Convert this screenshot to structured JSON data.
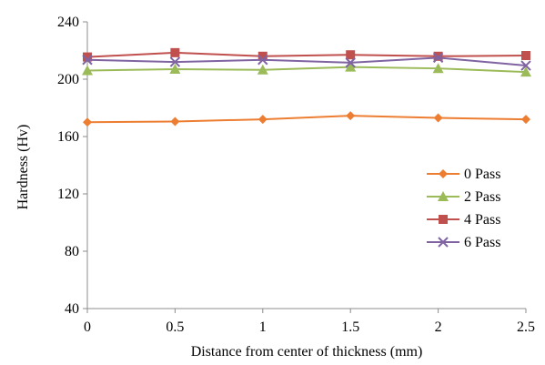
{
  "chart_data": {
    "type": "line",
    "xlabel": "Distance from center of thickness (mm)",
    "ylabel": "Hardness (Hv)",
    "x": [
      0,
      0.5,
      1,
      1.5,
      2,
      2.5
    ],
    "x_tick_labels": [
      "0",
      "0.5",
      "1",
      "1.5",
      "2",
      "2.5"
    ],
    "xlim": [
      0,
      2.5
    ],
    "ylim": [
      40,
      240
    ],
    "y_ticks": [
      40,
      80,
      120,
      160,
      200,
      240
    ],
    "y_tick_labels": [
      "40",
      "80",
      "120",
      "160",
      "200",
      "240"
    ],
    "grid": false,
    "legend_position": "right",
    "series": [
      {
        "name": "0 Pass",
        "color": "#ED7D31",
        "marker": "diamond",
        "values": [
          170,
          170.5,
          172,
          174.5,
          173,
          172
        ]
      },
      {
        "name": "2 Pass",
        "color": "#9BBB59",
        "marker": "triangle",
        "values": [
          206,
          207,
          206.5,
          208.5,
          207.5,
          205
        ]
      },
      {
        "name": "4 Pass",
        "color": "#C0504D",
        "marker": "square",
        "values": [
          215.5,
          218.5,
          216,
          217,
          216,
          216.5
        ]
      },
      {
        "name": "6 Pass",
        "color": "#8064A2",
        "marker": "x",
        "values": [
          213.5,
          212,
          213.5,
          211.5,
          215,
          209.5
        ]
      }
    ]
  }
}
